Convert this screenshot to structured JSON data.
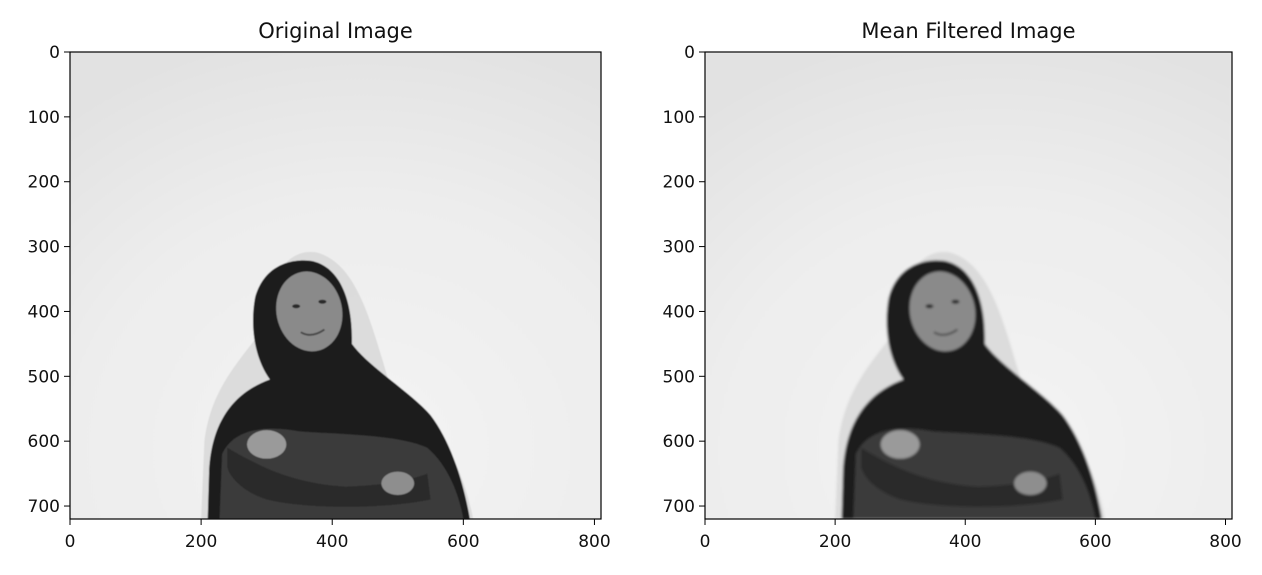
{
  "figure": {
    "panels": [
      {
        "title": "Original Image",
        "filter": "none",
        "x_axis": {
          "limits": [
            0,
            810
          ],
          "ticks": [
            {
              "value": 0,
              "label": "0"
            },
            {
              "value": 200,
              "label": "200"
            },
            {
              "value": 400,
              "label": "400"
            },
            {
              "value": 600,
              "label": "600"
            },
            {
              "value": 800,
              "label": "800"
            }
          ]
        },
        "y_axis": {
          "limits": [
            720,
            0
          ],
          "ticks": [
            {
              "value": 0,
              "label": "0"
            },
            {
              "value": 100,
              "label": "100"
            },
            {
              "value": 200,
              "label": "200"
            },
            {
              "value": 300,
              "label": "300"
            },
            {
              "value": 400,
              "label": "400"
            },
            {
              "value": 500,
              "label": "500"
            },
            {
              "value": 600,
              "label": "600"
            },
            {
              "value": 700,
              "label": "700"
            }
          ]
        },
        "image": {
          "kind": "grayscale photo",
          "background_color": "#efefef",
          "subject_color": "#1c1c1c",
          "clothing_color": "#3a3a3a",
          "skin_color": "#8a8a8a"
        }
      },
      {
        "title": "Mean Filtered Image",
        "filter": "mean",
        "x_axis": {
          "limits": [
            0,
            810
          ],
          "ticks": [
            {
              "value": 0,
              "label": "0"
            },
            {
              "value": 200,
              "label": "200"
            },
            {
              "value": 400,
              "label": "400"
            },
            {
              "value": 600,
              "label": "600"
            },
            {
              "value": 800,
              "label": "800"
            }
          ]
        },
        "y_axis": {
          "limits": [
            720,
            0
          ],
          "ticks": [
            {
              "value": 0,
              "label": "0"
            },
            {
              "value": 100,
              "label": "100"
            },
            {
              "value": 200,
              "label": "200"
            },
            {
              "value": 300,
              "label": "300"
            },
            {
              "value": 400,
              "label": "400"
            },
            {
              "value": 500,
              "label": "500"
            },
            {
              "value": 600,
              "label": "600"
            },
            {
              "value": 700,
              "label": "700"
            }
          ]
        },
        "image": {
          "kind": "grayscale photo",
          "background_color": "#efefef",
          "subject_color": "#1c1c1c",
          "clothing_color": "#3a3a3a",
          "skin_color": "#8a8a8a"
        }
      }
    ]
  }
}
